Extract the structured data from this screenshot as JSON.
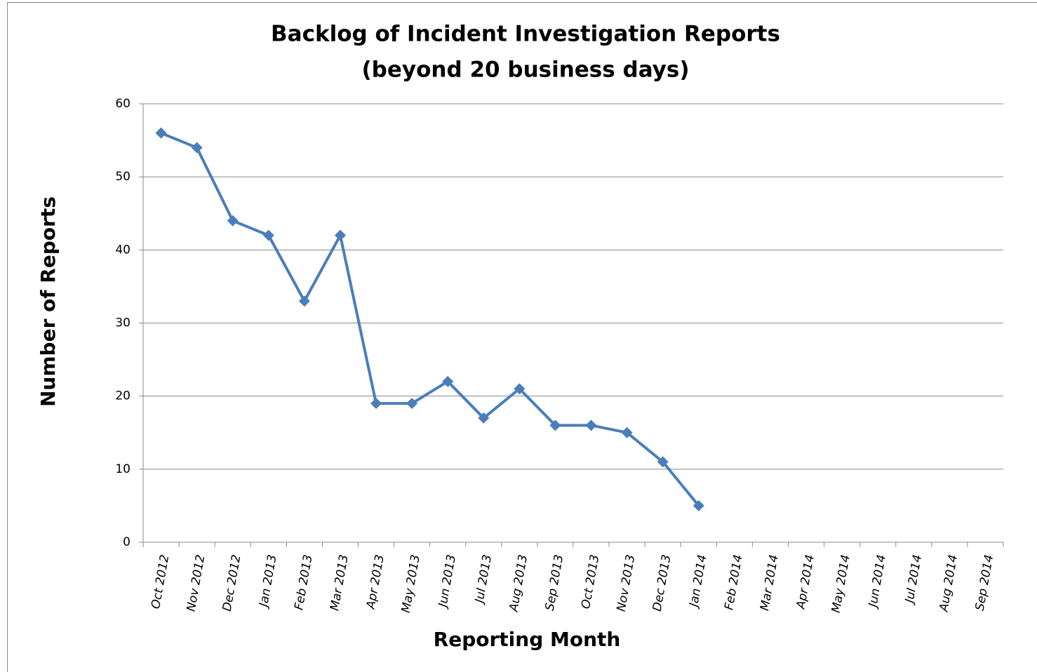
{
  "chart_data": {
    "type": "line",
    "title": "Backlog of Incident Investigation Reports",
    "subtitle": "(beyond 20 business days)",
    "x_label": "Reporting Month",
    "y_label": "Number of Reports",
    "categories": [
      "Oct 2012",
      "Nov 2012",
      "Dec 2012",
      "Jan 2013",
      "Feb 2013",
      "Mar 2013",
      "Apr 2013",
      "May 2013",
      "Jun 2013",
      "Jul 2013",
      "Aug 2013",
      "Sep 2013",
      "Oct 2013",
      "Nov 2013",
      "Dec 2013",
      "Jan 2014",
      "Feb 2014",
      "Mar 2014",
      "Apr 2014",
      "May 2014",
      "Jun 2014",
      "Jul 2014",
      "Aug 2014",
      "Sep 2014"
    ],
    "values": [
      56,
      54,
      44,
      42,
      33,
      42,
      19,
      19,
      22,
      17,
      21,
      16,
      16,
      15,
      11,
      5,
      null,
      null,
      null,
      null,
      null,
      null,
      null,
      null
    ],
    "color": "#4a7ebb",
    "ylim": [
      0,
      60
    ],
    "yticks": [
      0,
      10,
      20,
      30,
      40,
      50,
      60
    ],
    "grid": true
  }
}
